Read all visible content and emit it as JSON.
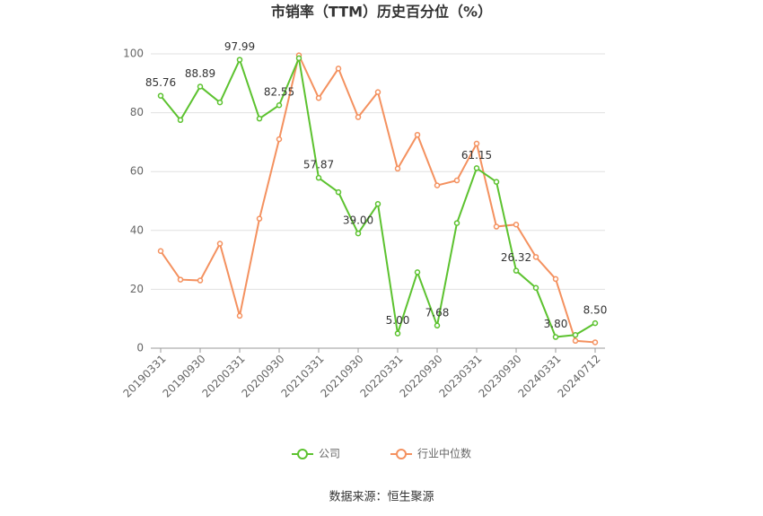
{
  "chart_data": {
    "type": "line",
    "title": "市销率（TTM）历史百分位（%）",
    "categories": [
      "20190331",
      null,
      "20190930",
      null,
      "20200331",
      null,
      "20200930",
      null,
      "20210331",
      null,
      "20210930",
      null,
      "20220331",
      null,
      "20220930",
      null,
      "20230331",
      null,
      "20230930",
      null,
      "20240331",
      null,
      "20240712"
    ],
    "series": [
      {
        "name": "公司",
        "color": "#5cc22f",
        "values": [
          85.76,
          77.5,
          88.89,
          83.5,
          97.99,
          78,
          82.55,
          98.5,
          57.87,
          53,
          39.0,
          49,
          5.0,
          25.8,
          7.68,
          42.5,
          61.15,
          56.5,
          26.32,
          20.5,
          3.8,
          4.5,
          8.5
        ],
        "value_labels": [
          "85.76",
          null,
          "88.89",
          null,
          "97.99",
          null,
          "82.55",
          null,
          "57.87",
          null,
          "39.00",
          null,
          "5.00",
          null,
          "7.68",
          null,
          "61.15",
          null,
          "26.32",
          null,
          "3.80",
          null,
          "8.50"
        ]
      },
      {
        "name": "行业中位数",
        "color": "#f4915f",
        "values": [
          33,
          23.3,
          23,
          35.5,
          11,
          44,
          71,
          99.5,
          85,
          95,
          78.5,
          87,
          61,
          72.5,
          55.3,
          57,
          69.5,
          41.3,
          42,
          31,
          23.5,
          2.5,
          2
        ]
      }
    ],
    "ylim": [
      0,
      100
    ],
    "yticks": [
      0,
      20,
      40,
      60,
      80,
      100
    ],
    "grid": true,
    "legend": "bottom",
    "source": "数据来源：恒生聚源"
  }
}
